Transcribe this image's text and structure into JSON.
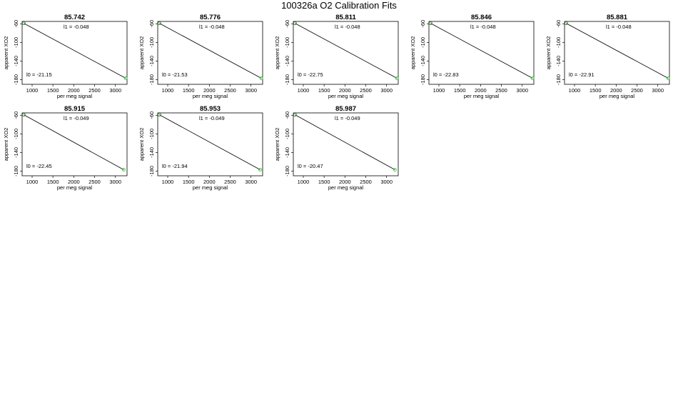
{
  "page": {
    "title": "100326a   O2 Calibration Fits"
  },
  "chart_data": [
    {
      "type": "line",
      "title": "85.742",
      "xlabel": "per meg signal",
      "ylabel": "apparent XO2",
      "xlim": [
        760,
        3280
      ],
      "ylim": [
        -190,
        -55
      ],
      "xticks": [
        "1000",
        "1500",
        "2000",
        "2500",
        "3000"
      ],
      "yticks": [
        "-60",
        "-100",
        "-140",
        "-180"
      ],
      "annotations": {
        "l1": "l1 =  -0.048",
        "l0": "l0 =  -21.15"
      },
      "line": {
        "x": [
          800,
          3250
        ],
        "y": [
          -59,
          -177
        ]
      },
      "points": [
        {
          "x": 800,
          "y": -59
        },
        {
          "x": 3250,
          "y": -177
        }
      ]
    },
    {
      "type": "line",
      "title": "85.776",
      "xlabel": "per meg signal",
      "ylabel": "apparent XO2",
      "xlim": [
        760,
        3280
      ],
      "ylim": [
        -190,
        -55
      ],
      "xticks": [
        "1000",
        "1500",
        "2000",
        "2500",
        "3000"
      ],
      "yticks": [
        "-60",
        "-100",
        "-140",
        "-180"
      ],
      "annotations": {
        "l1": "l1 =  -0.048",
        "l0": "l0 =  -21.53"
      },
      "line": {
        "x": [
          800,
          3250
        ],
        "y": [
          -59,
          -177
        ]
      },
      "points": [
        {
          "x": 800,
          "y": -59
        },
        {
          "x": 3250,
          "y": -177
        }
      ]
    },
    {
      "type": "line",
      "title": "85.811",
      "xlabel": "per meg signal",
      "ylabel": "apparent XO2",
      "xlim": [
        760,
        3280
      ],
      "ylim": [
        -190,
        -55
      ],
      "xticks": [
        "1000",
        "1500",
        "2000",
        "2500",
        "3000"
      ],
      "yticks": [
        "-60",
        "-100",
        "-140",
        "-180"
      ],
      "annotations": {
        "l1": "l1 =  -0.048",
        "l0": "l0 =  -22.75"
      },
      "line": {
        "x": [
          800,
          3250
        ],
        "y": [
          -59,
          -177
        ]
      },
      "points": [
        {
          "x": 800,
          "y": -59
        },
        {
          "x": 3250,
          "y": -177
        }
      ]
    },
    {
      "type": "line",
      "title": "85.846",
      "xlabel": "per meg signal",
      "ylabel": "apparent XO2",
      "xlim": [
        760,
        3280
      ],
      "ylim": [
        -190,
        -55
      ],
      "xticks": [
        "1000",
        "1500",
        "2000",
        "2500",
        "3000"
      ],
      "yticks": [
        "-60",
        "-100",
        "-140",
        "-180"
      ],
      "annotations": {
        "l1": "l1 =  -0.048",
        "l0": "l0 =  -22.83"
      },
      "line": {
        "x": [
          800,
          3250
        ],
        "y": [
          -59,
          -177
        ]
      },
      "points": [
        {
          "x": 800,
          "y": -59
        },
        {
          "x": 3250,
          "y": -177
        }
      ]
    },
    {
      "type": "line",
      "title": "85.881",
      "xlabel": "per meg signal",
      "ylabel": "apparent XO2",
      "xlim": [
        760,
        3280
      ],
      "ylim": [
        -190,
        -55
      ],
      "xticks": [
        "1000",
        "1500",
        "2000",
        "2500",
        "3000"
      ],
      "yticks": [
        "-60",
        "-100",
        "-140",
        "-180"
      ],
      "annotations": {
        "l1": "l1 =  -0.048",
        "l0": "l0 =  -22.91"
      },
      "line": {
        "x": [
          800,
          3250
        ],
        "y": [
          -59,
          -177
        ]
      },
      "points": [
        {
          "x": 800,
          "y": -59
        },
        {
          "x": 3250,
          "y": -177
        }
      ]
    },
    {
      "type": "line",
      "title": "85.915",
      "xlabel": "per meg signal",
      "ylabel": "apparent XO2",
      "xlim": [
        760,
        3280
      ],
      "ylim": [
        -190,
        -55
      ],
      "xticks": [
        "1000",
        "1500",
        "2000",
        "2500",
        "3000"
      ],
      "yticks": [
        "-60",
        "-100",
        "-140",
        "-180"
      ],
      "annotations": {
        "l1": "l1 =  -0.049",
        "l0": "l0 =  -22.45"
      },
      "line": {
        "x": [
          800,
          3200
        ],
        "y": [
          -59,
          -177
        ]
      },
      "points": [
        {
          "x": 800,
          "y": -59
        },
        {
          "x": 3200,
          "y": -177
        }
      ]
    },
    {
      "type": "line",
      "title": "85.953",
      "xlabel": "per meg signal",
      "ylabel": "apparent XO2",
      "xlim": [
        760,
        3280
      ],
      "ylim": [
        -190,
        -55
      ],
      "xticks": [
        "1000",
        "1500",
        "2000",
        "2500",
        "3000"
      ],
      "yticks": [
        "-60",
        "-100",
        "-140",
        "-180"
      ],
      "annotations": {
        "l1": "l1 =  -0.049",
        "l0": "l0 =  -21.94"
      },
      "line": {
        "x": [
          800,
          3220
        ],
        "y": [
          -59,
          -177
        ]
      },
      "points": [
        {
          "x": 800,
          "y": -59
        },
        {
          "x": 3220,
          "y": -177
        }
      ]
    },
    {
      "type": "line",
      "title": "85.987",
      "xlabel": "per meg signal",
      "ylabel": "apparent XO2",
      "xlim": [
        760,
        3280
      ],
      "ylim": [
        -190,
        -55
      ],
      "xticks": [
        "1000",
        "1500",
        "2000",
        "2500",
        "3000"
      ],
      "yticks": [
        "-60",
        "-100",
        "-140",
        "-180"
      ],
      "annotations": {
        "l1": "l1 =  -0.049",
        "l0": "l0 =  -20.47"
      },
      "line": {
        "x": [
          800,
          3200
        ],
        "y": [
          -59,
          -177
        ]
      },
      "points": [
        {
          "x": 800,
          "y": -59
        },
        {
          "x": 3200,
          "y": -177
        }
      ]
    }
  ],
  "colors": {
    "fit_line": "#000000",
    "point_low": "#2a7f2a",
    "point_high": "#33cc33"
  }
}
